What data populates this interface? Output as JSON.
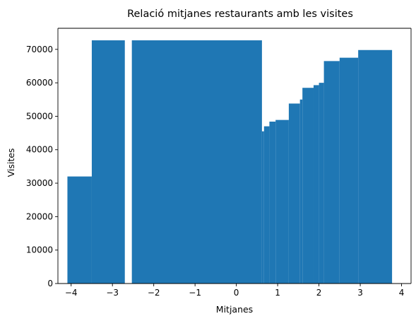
{
  "chart_data": {
    "type": "bar",
    "title": "Relació mitjanes restaurants amb les visites",
    "xlabel": "Mitjanes",
    "ylabel": "Visites",
    "xlim": [
      -4.32,
      4.23
    ],
    "ylim": [
      0,
      76300
    ],
    "xticks": [
      -4,
      -3,
      -2,
      -1,
      0,
      1,
      2,
      3,
      4
    ],
    "xtick_labels": [
      "−4",
      "−3",
      "−2",
      "−1",
      "0",
      "1",
      "2",
      "3",
      "4"
    ],
    "yticks": [
      0,
      10000,
      20000,
      30000,
      40000,
      50000,
      60000,
      70000
    ],
    "ytick_labels": [
      "0",
      "10000",
      "20000",
      "30000",
      "40000",
      "50000",
      "60000",
      "70000"
    ],
    "grid": false,
    "bar_color": "#1f77b4",
    "bars": [
      {
        "x0": -4.09,
        "x1": -3.5,
        "y": 32000
      },
      {
        "x0": -3.5,
        "x1": -2.7,
        "y": 72700
      },
      {
        "x0": -2.53,
        "x1": 0.62,
        "y": 72700
      },
      {
        "x0": 0.62,
        "x1": 0.67,
        "y": 45500
      },
      {
        "x0": 0.67,
        "x1": 0.8,
        "y": 47000
      },
      {
        "x0": 0.8,
        "x1": 0.95,
        "y": 48400
      },
      {
        "x0": 0.95,
        "x1": 1.27,
        "y": 48900
      },
      {
        "x0": 1.27,
        "x1": 1.54,
        "y": 53800
      },
      {
        "x0": 1.54,
        "x1": 1.6,
        "y": 55000
      },
      {
        "x0": 1.6,
        "x1": 1.87,
        "y": 58500
      },
      {
        "x0": 1.87,
        "x1": 2.0,
        "y": 59300
      },
      {
        "x0": 2.0,
        "x1": 2.12,
        "y": 60000
      },
      {
        "x0": 2.12,
        "x1": 2.5,
        "y": 66500
      },
      {
        "x0": 2.5,
        "x1": 2.95,
        "y": 67500
      },
      {
        "x0": 2.95,
        "x1": 3.77,
        "y": 69800
      }
    ]
  }
}
